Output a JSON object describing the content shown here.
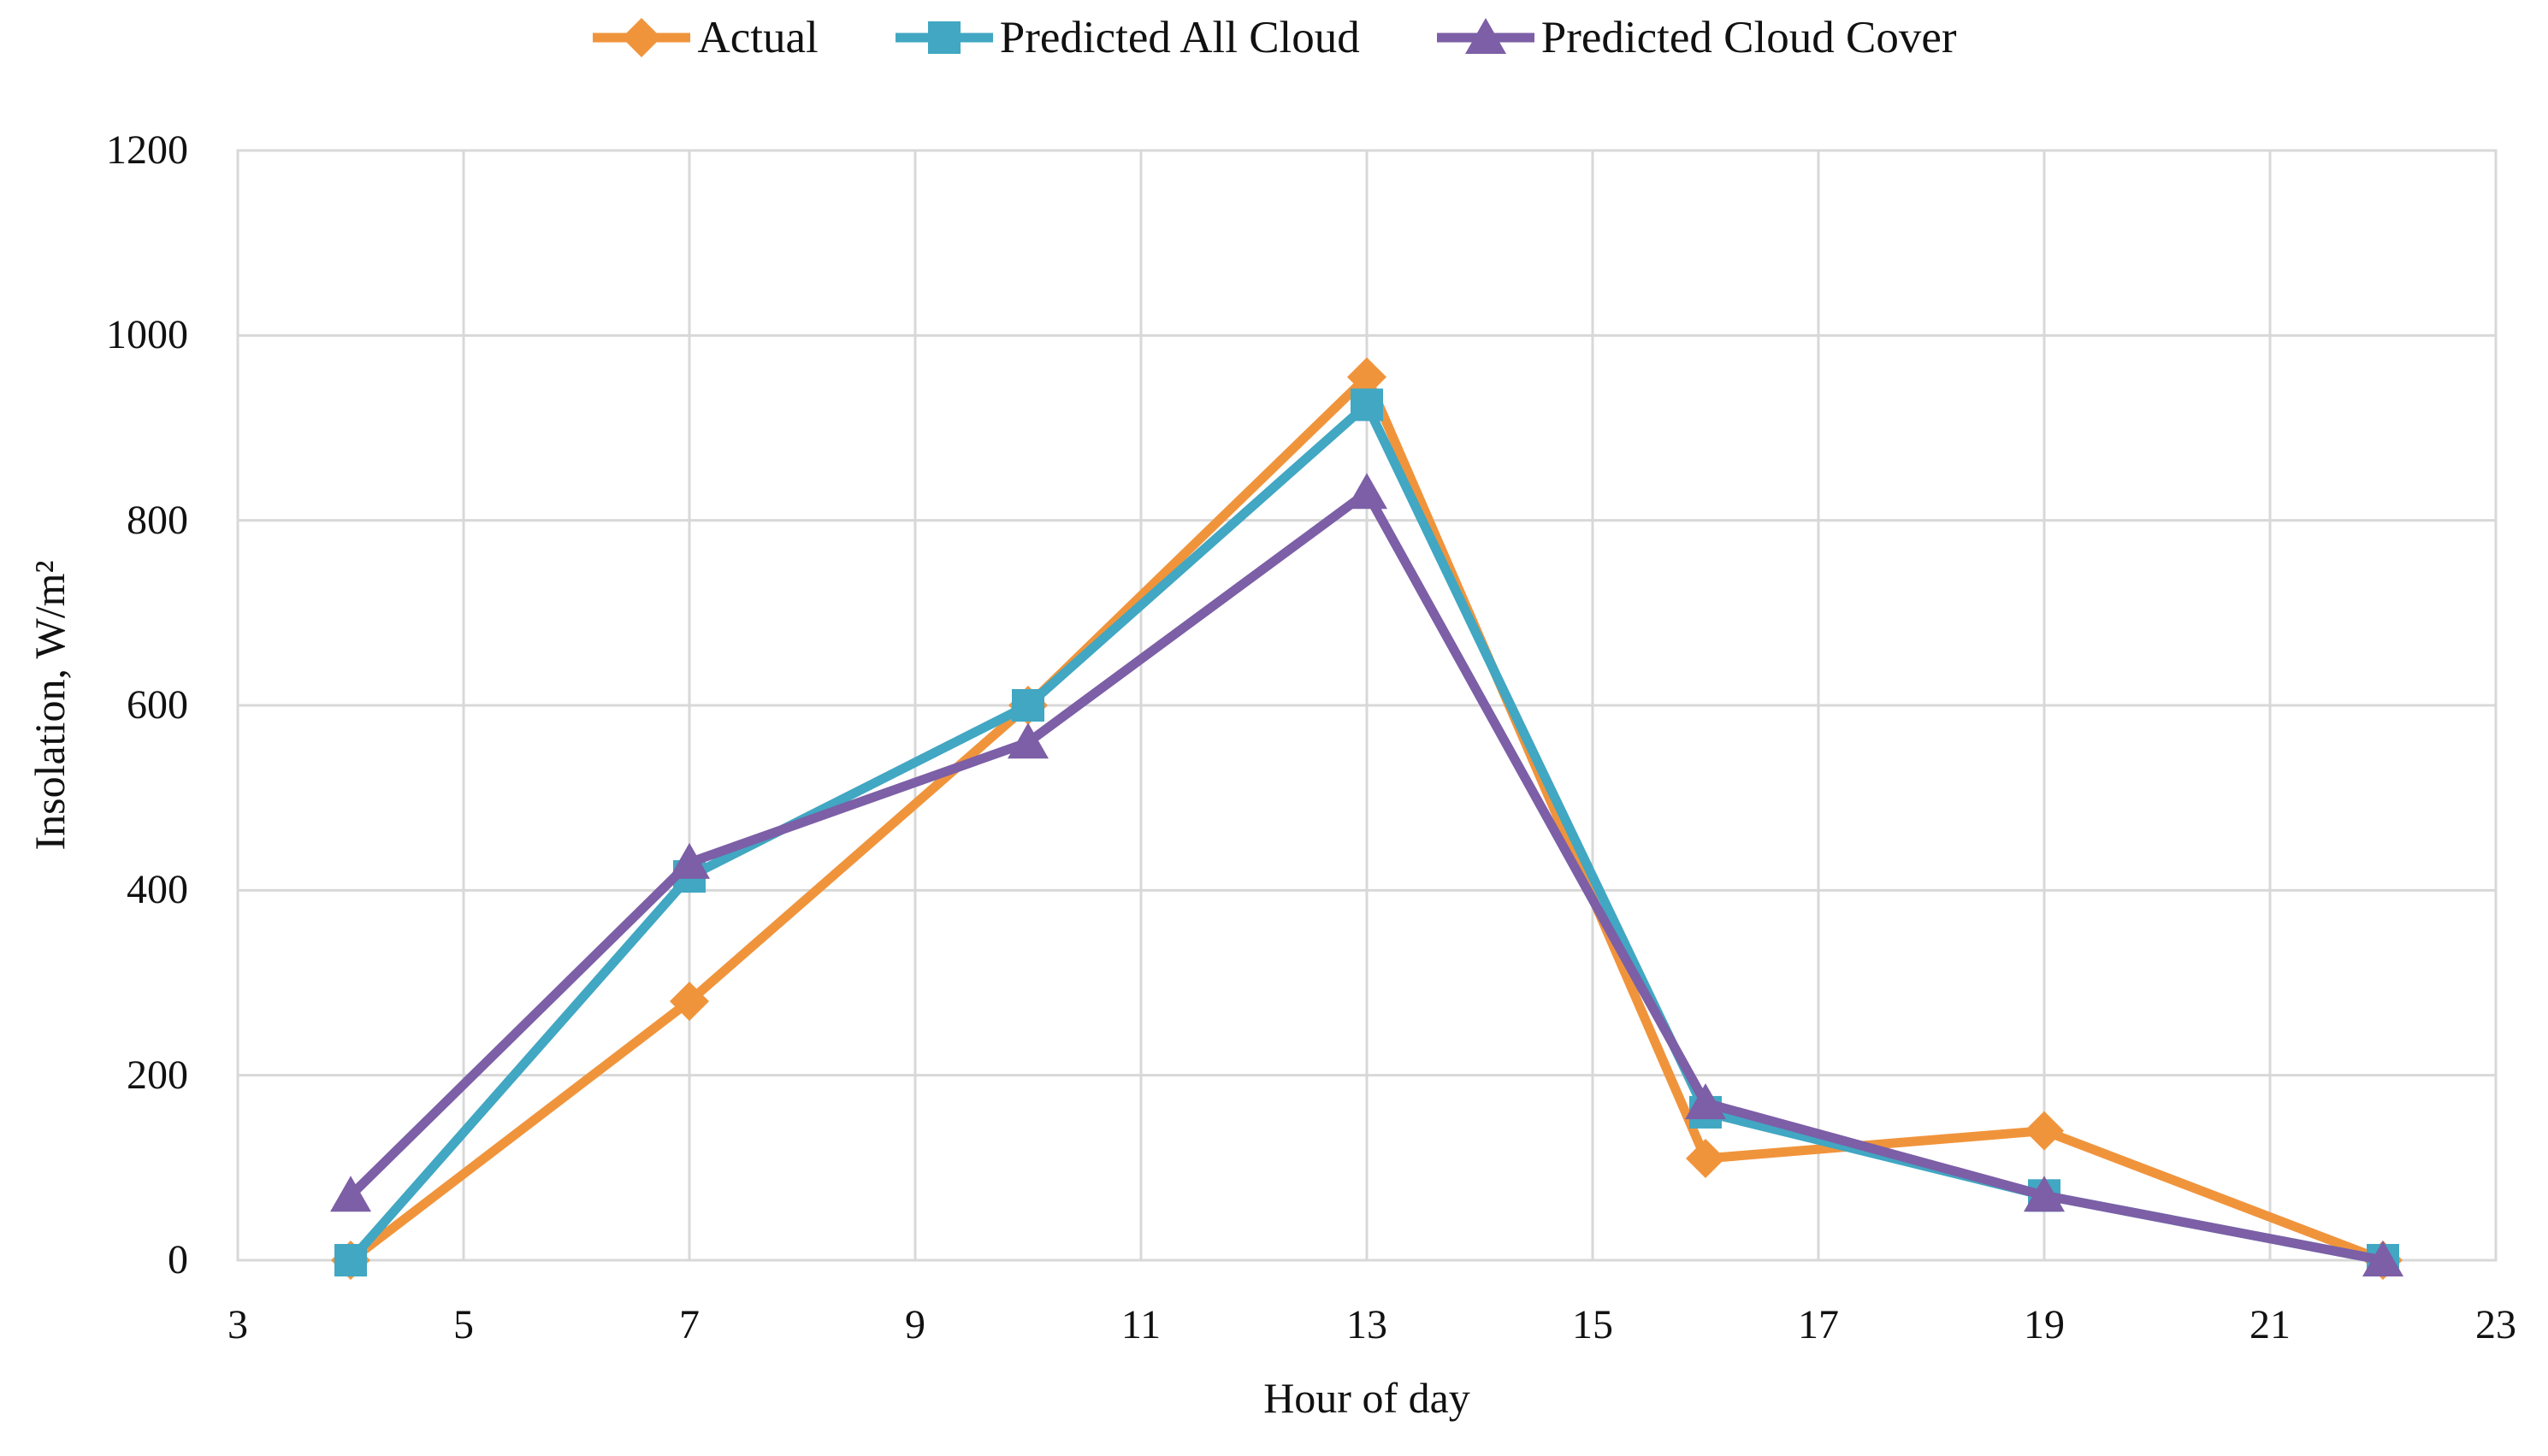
{
  "chart_data": {
    "type": "line",
    "title": "",
    "xlabel": "Hour of day",
    "ylabel": "Insolation, W/m²",
    "xlim": [
      3,
      23
    ],
    "ylim": [
      0,
      1200
    ],
    "x_ticks": [
      3,
      5,
      7,
      9,
      11,
      13,
      15,
      17,
      19,
      21,
      23
    ],
    "y_ticks": [
      0,
      200,
      400,
      600,
      800,
      1000,
      1200
    ],
    "grid": true,
    "legend_position": "top-center",
    "gridline_color": "#D8D8D8",
    "text_color": "#111111",
    "x": [
      4,
      7,
      10,
      13,
      16,
      19,
      22
    ],
    "series": [
      {
        "name": "Actual",
        "color": "#F0943C",
        "marker": "diamond",
        "values": [
          0,
          280,
          600,
          955,
          110,
          140,
          0
        ]
      },
      {
        "name": "Predicted All Cloud",
        "color": "#41A7C2",
        "marker": "square",
        "values": [
          0,
          415,
          600,
          925,
          160,
          70,
          0
        ]
      },
      {
        "name": "Predicted Cloud Cover",
        "color": "#7C5FA6",
        "marker": "triangle",
        "values": [
          70,
          430,
          560,
          830,
          170,
          70,
          0
        ]
      }
    ]
  }
}
